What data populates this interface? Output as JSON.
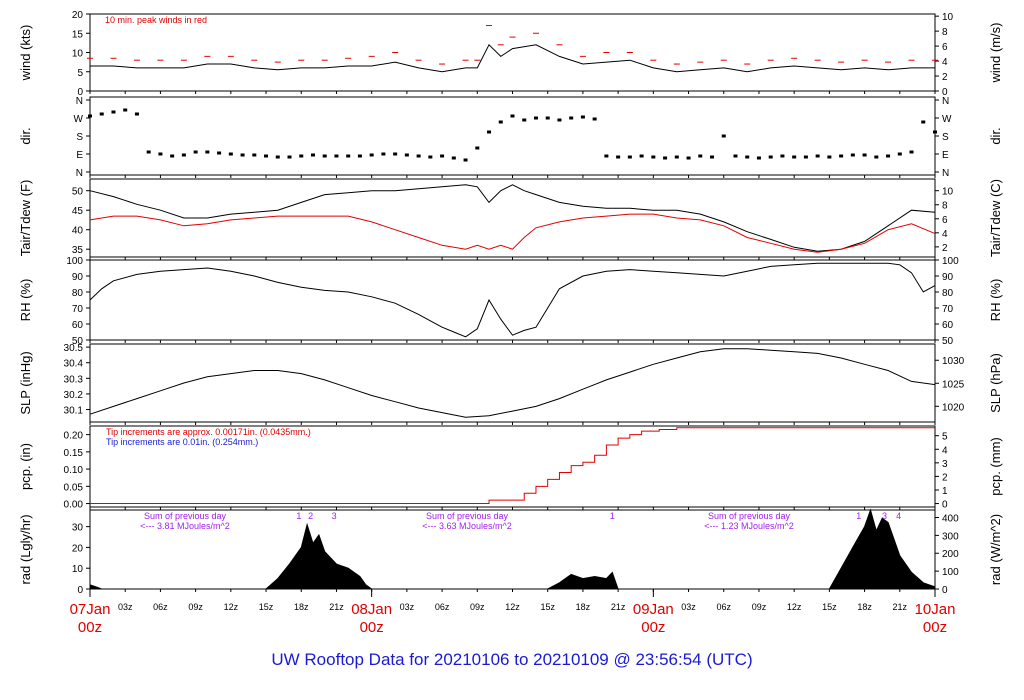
{
  "title": "UW Rooftop Data for 20210106  to  20210109 @ 23:56:54  (UTC)",
  "colors": {
    "black": "#000000",
    "red": "#e00000",
    "blue": "#1a1ad6",
    "purple": "#a020f0",
    "title": "#1a1ad6"
  },
  "x_axis": {
    "days": [
      {
        "date": "07Jan",
        "hour": "00z"
      },
      {
        "date": "08Jan",
        "hour": "00z"
      },
      {
        "date": "09Jan",
        "hour": "00z"
      },
      {
        "date": "10Jan",
        "hour": "00z"
      }
    ],
    "hour_ticks": [
      "03z",
      "06z",
      "09z",
      "12z",
      "15z",
      "18z",
      "21z"
    ],
    "range_hours": [
      0,
      72
    ]
  },
  "chart_data": [
    {
      "type": "line",
      "panel": "wind",
      "ylabel": "wind (kts)",
      "ylabel_right": "wind (m/s)",
      "ylim": [
        0,
        20
      ],
      "yticks": [
        "0",
        "5",
        "10",
        "15",
        "20"
      ],
      "yticks_right": [
        "0",
        "2",
        "4",
        "6",
        "8",
        "10"
      ],
      "annotation": "10 min. peak winds in red",
      "series": [
        {
          "name": "",
          "x": [
            0,
            2,
            4,
            6,
            8,
            10,
            12,
            14,
            16,
            18,
            20,
            22,
            24,
            26,
            28,
            30,
            32,
            33,
            34,
            35,
            36,
            38,
            40,
            42,
            44,
            46,
            48,
            50,
            52,
            54,
            56,
            58,
            60,
            62,
            64,
            66,
            68,
            70,
            72
          ],
          "y": [
            6.5,
            6.5,
            6,
            6,
            6,
            7,
            7,
            6,
            5.5,
            6,
            6,
            6.5,
            6.5,
            7.5,
            6,
            5,
            6,
            6,
            12,
            9,
            11,
            12,
            9,
            7,
            7.5,
            8,
            6,
            5,
            5.5,
            6,
            5,
            6,
            6.5,
            6,
            5.5,
            6,
            5.5,
            6,
            6
          ]
        },
        {
          "name": "",
          "x": [
            0,
            2,
            4,
            6,
            8,
            10,
            12,
            14,
            16,
            18,
            20,
            22,
            24,
            26,
            28,
            30,
            32,
            33,
            34,
            35,
            36,
            38,
            40,
            42,
            44,
            46,
            48,
            50,
            52,
            54,
            56,
            58,
            60,
            62,
            64,
            66,
            68,
            70,
            72
          ],
          "y": [
            8.5,
            8.5,
            8,
            8,
            8,
            9,
            9,
            8,
            7.5,
            8,
            8,
            8.5,
            9,
            10,
            8,
            7,
            8,
            8,
            17,
            12,
            14,
            15,
            12,
            9,
            10,
            10,
            8,
            7,
            7.5,
            8,
            7,
            8,
            8.5,
            8,
            7.5,
            8,
            7.5,
            8,
            8
          ]
        }
      ]
    },
    {
      "type": "scatter",
      "panel": "dir",
      "ylabel": "dir.",
      "ylabel_right": "dir.",
      "yticks": [
        "N",
        "E",
        "S",
        "W",
        "N"
      ],
      "yticks_right": [
        "N",
        "E",
        "S",
        "W",
        "N"
      ],
      "series": [
        {
          "name": "",
          "x": [
            0,
            1,
            2,
            3,
            4,
            5,
            6,
            7,
            8,
            9,
            10,
            11,
            12,
            13,
            14,
            15,
            16,
            17,
            18,
            19,
            20,
            21,
            22,
            23,
            24,
            25,
            26,
            27,
            28,
            29,
            30,
            31,
            32,
            33,
            34,
            35,
            36,
            37,
            38,
            39,
            40,
            41,
            42,
            43,
            44,
            45,
            46,
            47,
            48,
            49,
            50,
            51,
            52,
            53,
            54,
            55,
            56,
            57,
            58,
            59,
            60,
            61,
            62,
            63,
            64,
            65,
            66,
            67,
            68,
            69,
            70,
            71,
            72
          ],
          "y": [
            280,
            290,
            300,
            310,
            290,
            100,
            90,
            80,
            85,
            100,
            100,
            95,
            90,
            85,
            85,
            80,
            75,
            75,
            80,
            85,
            80,
            80,
            80,
            80,
            85,
            90,
            90,
            85,
            80,
            75,
            80,
            70,
            60,
            120,
            200,
            250,
            280,
            260,
            270,
            270,
            260,
            270,
            275,
            265,
            80,
            75,
            75,
            80,
            75,
            70,
            75,
            70,
            80,
            75,
            180,
            80,
            75,
            70,
            75,
            80,
            75,
            75,
            80,
            75,
            80,
            85,
            85,
            75,
            80,
            90,
            100,
            250,
            200
          ]
        }
      ]
    },
    {
      "type": "line",
      "panel": "temp",
      "ylabel": "Tair/Tdew (F)",
      "ylabel_right": "Tair/Tdew (C)",
      "ylim": [
        33,
        53
      ],
      "yticks": [
        "35",
        "40",
        "45",
        "50"
      ],
      "yticks_right": [
        "2",
        "4",
        "6",
        "8",
        "10"
      ],
      "series": [
        {
          "name": "",
          "x": [
            0,
            2,
            4,
            6,
            8,
            10,
            12,
            14,
            16,
            18,
            20,
            22,
            24,
            26,
            28,
            30,
            32,
            33,
            34,
            35,
            36,
            37,
            38,
            40,
            42,
            44,
            46,
            48,
            50,
            52,
            54,
            56,
            58,
            60,
            62,
            64,
            66,
            68,
            70,
            72
          ],
          "y": [
            50,
            48.5,
            46.5,
            45,
            43,
            43,
            44,
            44.5,
            45,
            47,
            49,
            49.5,
            50,
            50,
            50.5,
            51,
            51.5,
            51,
            47,
            50,
            51.5,
            50,
            49,
            47,
            46,
            45.5,
            45.5,
            45,
            45,
            44,
            42,
            39.5,
            37.5,
            35.5,
            34.5,
            35,
            37,
            41,
            45,
            44.5
          ]
        },
        {
          "name": "",
          "x": [
            0,
            2,
            4,
            6,
            8,
            10,
            12,
            14,
            16,
            18,
            20,
            22,
            24,
            26,
            28,
            30,
            32,
            33,
            34,
            35,
            36,
            37,
            38,
            40,
            42,
            44,
            46,
            48,
            50,
            52,
            54,
            56,
            58,
            60,
            62,
            64,
            66,
            68,
            70,
            72
          ],
          "y": [
            42.5,
            43.5,
            43.5,
            42.5,
            41,
            41.5,
            42.5,
            43,
            43.5,
            43.5,
            43.5,
            43.5,
            42,
            40,
            38,
            36,
            35,
            36,
            35,
            36,
            35,
            38,
            40.5,
            42,
            43,
            43.5,
            44,
            44,
            43,
            42.5,
            41,
            38,
            36.5,
            35,
            34.2,
            35,
            36.5,
            40,
            41.5,
            39
          ]
        }
      ]
    },
    {
      "type": "line",
      "panel": "rh",
      "ylabel": "RH (%)",
      "ylabel_right": "RH (%)",
      "ylim": [
        50,
        100
      ],
      "yticks": [
        "50",
        "60",
        "70",
        "80",
        "90",
        "100"
      ],
      "yticks_right": [
        "50",
        "60",
        "70",
        "80",
        "90",
        "100"
      ],
      "series": [
        {
          "name": "",
          "x": [
            0,
            1,
            2,
            4,
            6,
            8,
            10,
            12,
            14,
            16,
            18,
            20,
            22,
            24,
            26,
            28,
            29,
            30,
            31,
            32,
            33,
            34,
            35,
            36,
            37,
            38,
            39,
            40,
            42,
            44,
            46,
            48,
            50,
            52,
            54,
            56,
            58,
            60,
            62,
            64,
            66,
            68,
            69,
            70,
            71,
            72
          ],
          "y": [
            75,
            82,
            87,
            91,
            93,
            94,
            95,
            93,
            90,
            86,
            83,
            81,
            80,
            77,
            73,
            66,
            62,
            58,
            55,
            52,
            57,
            75,
            63,
            53,
            56,
            58,
            70,
            82,
            90,
            93,
            94,
            93,
            92,
            91,
            90,
            93,
            96,
            97,
            98,
            98,
            98,
            98,
            97,
            92,
            80,
            84
          ]
        }
      ]
    },
    {
      "type": "line",
      "panel": "slp",
      "ylabel": "SLP (inHg)",
      "ylabel_right": "SLP (hPa)",
      "ylim": [
        30.02,
        30.52
      ],
      "yticks": [
        "30.1",
        "30.2",
        "30.3",
        "30.4",
        "30.5"
      ],
      "yticks_right": [
        "1020",
        "1025",
        "1030"
      ],
      "series": [
        {
          "name": "",
          "x": [
            0,
            2,
            4,
            6,
            8,
            10,
            12,
            14,
            16,
            18,
            20,
            22,
            24,
            26,
            28,
            30,
            32,
            34,
            36,
            38,
            40,
            42,
            44,
            46,
            48,
            50,
            52,
            54,
            56,
            58,
            60,
            62,
            64,
            66,
            68,
            70,
            72
          ],
          "y": [
            30.07,
            30.12,
            30.17,
            30.22,
            30.27,
            30.31,
            30.33,
            30.35,
            30.35,
            30.33,
            30.29,
            30.24,
            30.19,
            30.15,
            30.11,
            30.08,
            30.05,
            30.06,
            30.09,
            30.12,
            30.17,
            30.23,
            30.29,
            30.34,
            30.39,
            30.43,
            30.47,
            30.49,
            30.49,
            30.48,
            30.47,
            30.46,
            30.43,
            30.39,
            30.35,
            30.28,
            30.26
          ]
        }
      ]
    },
    {
      "type": "line",
      "panel": "pcp",
      "ylabel": "pcp. (in)",
      "ylabel_right": "pcp. (mm)",
      "ylim": [
        -0.01,
        0.225
      ],
      "yticks": [
        "0.00",
        "0.05",
        "0.10",
        "0.15",
        "0.20"
      ],
      "yticks_right": [
        "0",
        "1",
        "2",
        "3",
        "4",
        "5"
      ],
      "annotations": [
        {
          "text": "Tip increments are approx. 0.00171in. (0.0435mm.)",
          "color": "#e00000"
        },
        {
          "text": "Tip increments are 0.01in. (0.254mm.)",
          "color": "#1a1ad6"
        }
      ],
      "series": [
        {
          "name": "",
          "x": [
            0,
            33.5,
            34,
            36,
            37,
            38,
            39,
            40,
            41,
            42,
            43,
            44,
            45,
            46,
            47,
            48,
            48.5,
            49,
            50,
            72
          ],
          "y": [
            0,
            0,
            0.01,
            0.01,
            0.03,
            0.05,
            0.07,
            0.09,
            0.11,
            0.12,
            0.14,
            0.17,
            0.19,
            0.2,
            0.21,
            0.21,
            0.215,
            0.215,
            0.22,
            0.22
          ]
        }
      ]
    },
    {
      "type": "area",
      "panel": "rad",
      "ylabel": "rad (Lgly/hr)",
      "ylabel_right": "rad (W/m^2)",
      "ylim": [
        0,
        38
      ],
      "yticks": [
        "0",
        "10",
        "20",
        "30"
      ],
      "yticks_right": [
        "0",
        "100",
        "200",
        "300",
        "400"
      ],
      "day_notes": [
        {
          "line1": "Sum of previous day",
          "line2": "<--- 3.81 MJoules/m^2"
        },
        {
          "line1": "Sum of previous day",
          "line2": "<--- 3.63 MJoules/m^2"
        },
        {
          "line1": "Sum of previous day",
          "line2": "<--- 1.23 MJoules/m^2"
        }
      ],
      "peak_labels": [
        {
          "text": "1",
          "x": 17.8
        },
        {
          "text": "2",
          "x": 18.8
        },
        {
          "text": "3",
          "x": 20.8
        },
        {
          "text": "1",
          "x": 44.5
        },
        {
          "text": "1",
          "x": 65.5
        },
        {
          "text": "3",
          "x": 67.7
        },
        {
          "text": "4",
          "x": 68.9
        }
      ],
      "series": [
        {
          "name": "",
          "x": [
            0,
            0.5,
            1,
            15,
            16,
            17,
            18,
            18.5,
            19,
            19.5,
            20,
            21,
            22,
            23,
            23.5,
            24,
            39,
            40,
            41,
            42,
            43,
            44,
            44.5,
            45,
            63,
            64,
            65,
            66,
            66.5,
            67,
            67.5,
            68,
            69,
            70,
            71,
            72
          ],
          "y": [
            2,
            1,
            0,
            0,
            5,
            12,
            20,
            31,
            22,
            26,
            18,
            12,
            10,
            6,
            2,
            0,
            0,
            3,
            7,
            5,
            6,
            5,
            8,
            0,
            0,
            10,
            20,
            30,
            38,
            28,
            34,
            32,
            16,
            8,
            3,
            1
          ]
        }
      ]
    }
  ]
}
